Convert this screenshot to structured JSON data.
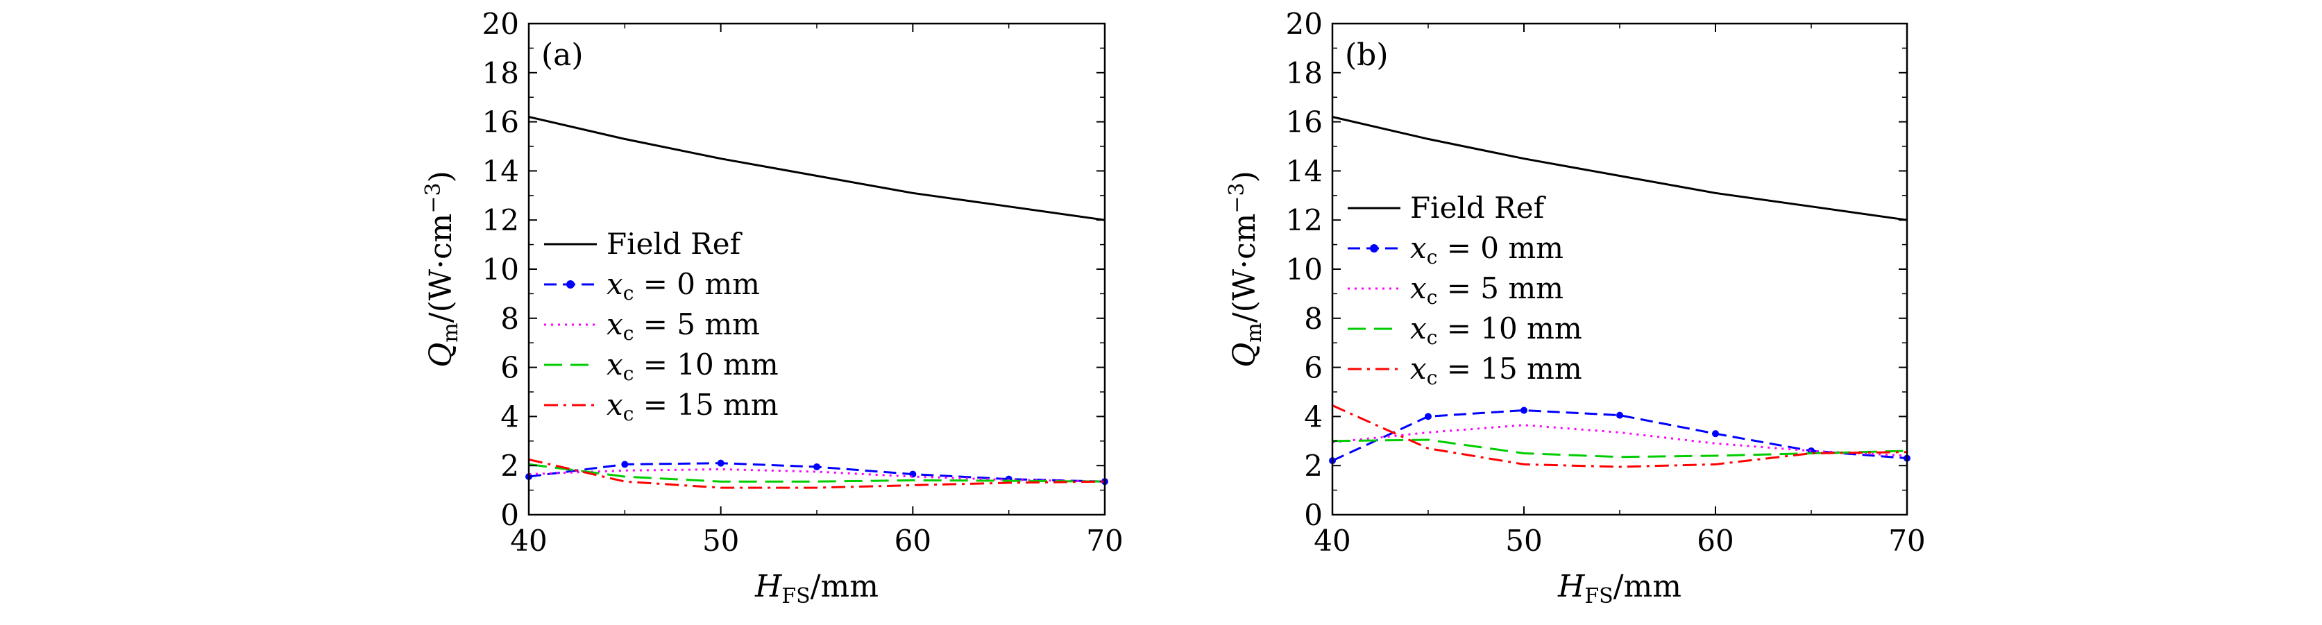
{
  "chart_data": [
    {
      "type": "line",
      "panel_label": "(a)",
      "xlabel": "H_FS/mm",
      "ylabel": "Q_m/(W·cm^−3)",
      "xlim": [
        40,
        70
      ],
      "ylim": [
        0,
        20
      ],
      "xticks": [
        40,
        50,
        60,
        70
      ],
      "yticks": [
        0,
        2,
        4,
        6,
        8,
        10,
        12,
        14,
        16,
        18,
        20
      ],
      "legend_position": "middle-left",
      "x": [
        40,
        45,
        50,
        55,
        60,
        65,
        70
      ],
      "series": [
        {
          "name": "Field Ref",
          "legend_main": "Field Ref",
          "legend_sub": "",
          "legend_tail": "",
          "color": "#000000",
          "dash": "solid",
          "marker": false,
          "values": [
            16.2,
            15.3,
            14.5,
            13.8,
            13.1,
            12.55,
            12.0
          ]
        },
        {
          "name": "x_c = 0 mm",
          "legend_main": "x",
          "legend_sub": "c",
          "legend_tail": " = 0 mm",
          "color": "#0000ff",
          "dash": "dash",
          "marker": true,
          "values": [
            1.55,
            2.05,
            2.1,
            1.95,
            1.65,
            1.45,
            1.35
          ]
        },
        {
          "name": "x_c = 5 mm",
          "legend_main": "x",
          "legend_sub": "c",
          "legend_tail": " = 5 mm",
          "color": "#ff00ff",
          "dash": "dot",
          "marker": false,
          "values": [
            1.65,
            1.8,
            1.85,
            1.75,
            1.55,
            1.42,
            1.35
          ]
        },
        {
          "name": "x_c = 10 mm",
          "legend_main": "x",
          "legend_sub": "c",
          "legend_tail": " = 10 mm",
          "color": "#00cc00",
          "dash": "longdash",
          "marker": false,
          "values": [
            2.05,
            1.55,
            1.35,
            1.35,
            1.4,
            1.38,
            1.35
          ]
        },
        {
          "name": "x_c = 15 mm",
          "legend_main": "x",
          "legend_sub": "c",
          "legend_tail": " = 15 mm",
          "color": "#ff0000",
          "dash": "dashdot",
          "marker": false,
          "values": [
            2.25,
            1.35,
            1.1,
            1.1,
            1.2,
            1.3,
            1.35
          ]
        }
      ]
    },
    {
      "type": "line",
      "panel_label": "(b)",
      "xlabel": "H_FS/mm",
      "ylabel": "Q_m/(W·cm^−3)",
      "xlim": [
        40,
        70
      ],
      "ylim": [
        0,
        20
      ],
      "xticks": [
        40,
        50,
        60,
        70
      ],
      "yticks": [
        0,
        2,
        4,
        6,
        8,
        10,
        12,
        14,
        16,
        18,
        20
      ],
      "legend_position": "middle-left",
      "x": [
        40,
        45,
        50,
        55,
        60,
        65,
        70
      ],
      "series": [
        {
          "name": "Field Ref",
          "legend_main": "Field Ref",
          "legend_sub": "",
          "legend_tail": "",
          "color": "#000000",
          "dash": "solid",
          "marker": false,
          "values": [
            16.2,
            15.3,
            14.5,
            13.8,
            13.1,
            12.55,
            12.0
          ]
        },
        {
          "name": "x_c = 0 mm",
          "legend_main": "x",
          "legend_sub": "c",
          "legend_tail": " = 0 mm",
          "color": "#0000ff",
          "dash": "dash",
          "marker": true,
          "values": [
            2.2,
            4.0,
            4.25,
            4.05,
            3.3,
            2.6,
            2.3
          ]
        },
        {
          "name": "x_c = 5 mm",
          "legend_main": "x",
          "legend_sub": "c",
          "legend_tail": " = 5 mm",
          "color": "#ff00ff",
          "dash": "dot",
          "marker": false,
          "values": [
            2.95,
            3.35,
            3.65,
            3.35,
            2.9,
            2.6,
            2.4
          ]
        },
        {
          "name": "x_c = 10 mm",
          "legend_main": "x",
          "legend_sub": "c",
          "legend_tail": " = 10 mm",
          "color": "#00cc00",
          "dash": "longdash",
          "marker": false,
          "values": [
            3.0,
            3.05,
            2.5,
            2.35,
            2.4,
            2.5,
            2.6
          ]
        },
        {
          "name": "x_c = 15 mm",
          "legend_main": "x",
          "legend_sub": "c",
          "legend_tail": " = 15 mm",
          "color": "#ff0000",
          "dash": "dashdot",
          "marker": false,
          "values": [
            4.45,
            2.7,
            2.05,
            1.95,
            2.05,
            2.5,
            2.55
          ]
        }
      ]
    }
  ]
}
